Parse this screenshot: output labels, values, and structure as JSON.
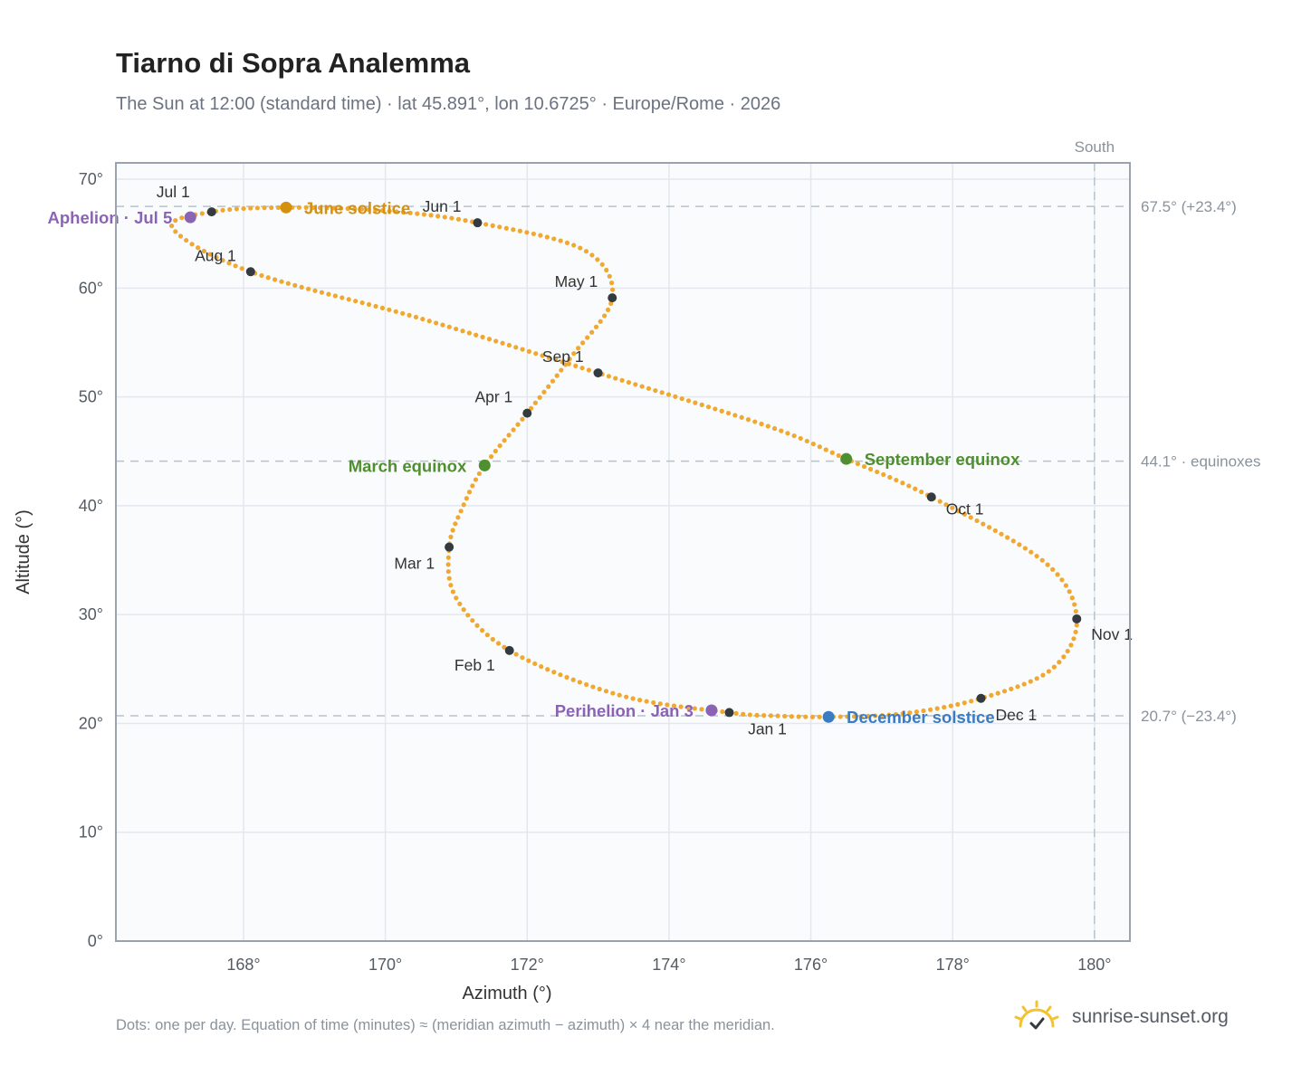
{
  "header": {
    "title": "Tiarno di Sopra Analemma",
    "subtitle": "The Sun at 12:00 (standard time) · lat 45.891°, lon 10.6725° · Europe/Rome · 2026"
  },
  "footer": {
    "note": "Dots: one per day. Equation of time (minutes) ≈ (meridian azimuth − azimuth) × 4 near the meridian.",
    "brand": "sunrise-sunset.org",
    "brand_icon": "sun-logo-icon"
  },
  "colors": {
    "path": "#f0a830",
    "month_dot": "#333a40",
    "aphelion": "#8a63b5",
    "perihelion": "#8a63b5",
    "june_solstice": "#d4900f",
    "december_solstice": "#3a7cc4",
    "equinox": "#4f8f2f",
    "reference_line": "#b8c2cc",
    "plot_background": "#f9fbfd",
    "grid": "#e3e8ee",
    "frame": "#9aa3ad"
  },
  "chart_data": {
    "type": "scatter",
    "xlabel": "Azimuth (°)",
    "ylabel": "Altitude (°)",
    "xlim": [
      166.2,
      180.5
    ],
    "ylim": [
      0,
      71.5
    ],
    "x_ticks": [
      168,
      170,
      172,
      174,
      176,
      178,
      180
    ],
    "x_tick_labels": [
      "168°",
      "170°",
      "172°",
      "174°",
      "176°",
      "178°",
      "180°"
    ],
    "y_ticks": [
      0,
      10,
      20,
      30,
      40,
      50,
      60,
      70
    ],
    "y_tick_labels": [
      "0°",
      "10°",
      "20°",
      "30°",
      "40°",
      "50°",
      "60°",
      "70°"
    ],
    "grid": true,
    "reference_lines": {
      "horizontal": [
        {
          "y": 67.5,
          "label": "67.5° (+23.4°)"
        },
        {
          "y": 44.1,
          "label": "44.1° · equinoxes"
        },
        {
          "y": 20.7,
          "label": "20.7° (−23.4°)"
        }
      ],
      "vertical": [
        {
          "x": 180,
          "label": "South"
        }
      ]
    },
    "month_markers": [
      {
        "label": "Jan 1",
        "azimuth": 174.85,
        "altitude": 21.0
      },
      {
        "label": "Feb 1",
        "azimuth": 171.75,
        "altitude": 26.7
      },
      {
        "label": "Mar 1",
        "azimuth": 170.9,
        "altitude": 36.2
      },
      {
        "label": "Apr 1",
        "azimuth": 172.0,
        "altitude": 48.5
      },
      {
        "label": "May 1",
        "azimuth": 173.2,
        "altitude": 59.1
      },
      {
        "label": "Jun 1",
        "azimuth": 171.3,
        "altitude": 66.0
      },
      {
        "label": "Jul 1",
        "azimuth": 167.55,
        "altitude": 67.0
      },
      {
        "label": "Aug 1",
        "azimuth": 168.1,
        "altitude": 61.5
      },
      {
        "label": "Sep 1",
        "azimuth": 173.0,
        "altitude": 52.2
      },
      {
        "label": "Oct 1",
        "azimuth": 177.7,
        "altitude": 40.8
      },
      {
        "label": "Nov 1",
        "azimuth": 179.75,
        "altitude": 29.6
      },
      {
        "label": "Dec 1",
        "azimuth": 178.4,
        "altitude": 22.3
      }
    ],
    "events": [
      {
        "label": "Aphelion · Jul 5",
        "azimuth": 167.25,
        "altitude": 66.5,
        "key": "aphelion"
      },
      {
        "label": "June solstice",
        "azimuth": 168.6,
        "altitude": 67.4,
        "key": "june_solstice"
      },
      {
        "label": "March equinox",
        "azimuth": 171.4,
        "altitude": 43.7,
        "key": "equinox"
      },
      {
        "label": "September equinox",
        "azimuth": 176.5,
        "altitude": 44.3,
        "key": "equinox"
      },
      {
        "label": "Perihelion · Jan 3",
        "azimuth": 174.6,
        "altitude": 21.2,
        "key": "perihelion"
      },
      {
        "label": "December solstice",
        "azimuth": 176.25,
        "altitude": 20.6,
        "key": "december_solstice"
      }
    ],
    "path_anchor_points": [
      [
        174.85,
        21.0
      ],
      [
        173.3,
        22.6
      ],
      [
        171.75,
        26.7
      ],
      [
        171.0,
        31.5
      ],
      [
        170.9,
        36.2
      ],
      [
        171.1,
        40.0
      ],
      [
        171.4,
        43.7
      ],
      [
        172.0,
        48.5
      ],
      [
        172.6,
        53.5
      ],
      [
        173.2,
        59.1
      ],
      [
        172.8,
        63.5
      ],
      [
        171.3,
        66.0
      ],
      [
        170.0,
        67.1
      ],
      [
        168.6,
        67.4
      ],
      [
        167.55,
        67.0
      ],
      [
        167.0,
        65.5
      ],
      [
        168.1,
        61.5
      ],
      [
        170.5,
        57.2
      ],
      [
        173.0,
        52.2
      ],
      [
        175.4,
        47.3
      ],
      [
        176.5,
        44.3
      ],
      [
        177.7,
        40.8
      ],
      [
        179.3,
        34.8
      ],
      [
        179.75,
        29.6
      ],
      [
        179.4,
        25.0
      ],
      [
        178.4,
        22.3
      ],
      [
        177.3,
        20.9
      ],
      [
        176.25,
        20.6
      ],
      [
        175.5,
        20.7
      ]
    ]
  }
}
